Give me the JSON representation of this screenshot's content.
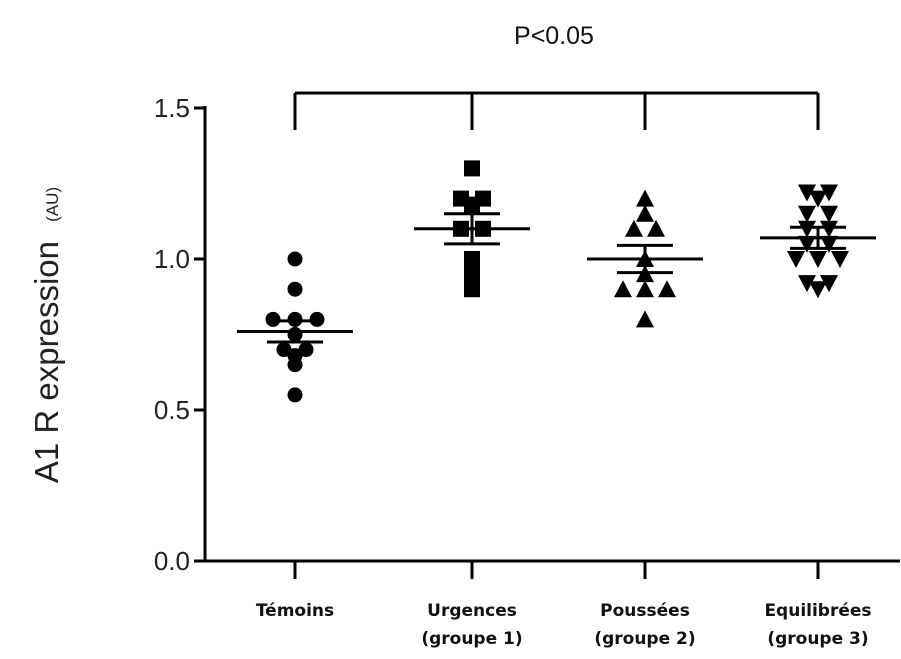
{
  "chart_data": {
    "type": "scatter",
    "title": "P<0.05",
    "ylabel": "A1 R expression",
    "ylabel_unit": "(AU)",
    "ylim": [
      0,
      1.5
    ],
    "yticks": [
      "0.0",
      "0.5",
      "1.0",
      "1.5"
    ],
    "categories": [
      [
        "Témoins"
      ],
      [
        "Urgences",
        "(groupe 1)"
      ],
      [
        "Poussées",
        "(groupe 2)"
      ],
      [
        "Equilibrées",
        "(groupe 3)"
      ]
    ],
    "series": [
      {
        "marker": "circle",
        "mean": 0.76,
        "sem": 0.035,
        "values": [
          1.0,
          0.9,
          0.8,
          0.8,
          0.8,
          0.75,
          0.7,
          0.7,
          0.68,
          0.65,
          0.55
        ]
      },
      {
        "marker": "square",
        "mean": 1.1,
        "sem": 0.05,
        "values": [
          1.3,
          1.2,
          1.2,
          1.18,
          1.1,
          1.1,
          1.0,
          0.95,
          0.9
        ]
      },
      {
        "marker": "triangle-up",
        "mean": 1.0,
        "sem": 0.045,
        "values": [
          1.2,
          1.15,
          1.1,
          1.1,
          1.0,
          0.95,
          0.9,
          0.9,
          0.9,
          0.8
        ]
      },
      {
        "marker": "triangle-down",
        "mean": 1.07,
        "sem": 0.035,
        "values": [
          1.22,
          1.22,
          1.2,
          1.15,
          1.15,
          1.1,
          1.1,
          1.05,
          1.05,
          1.0,
          1.0,
          1.0,
          0.92,
          0.9,
          0.92
        ]
      }
    ],
    "significance_bracket": {
      "groups": [
        0,
        1,
        2,
        3
      ],
      "label": "P<0.05"
    },
    "grid": false,
    "legend": "none"
  }
}
